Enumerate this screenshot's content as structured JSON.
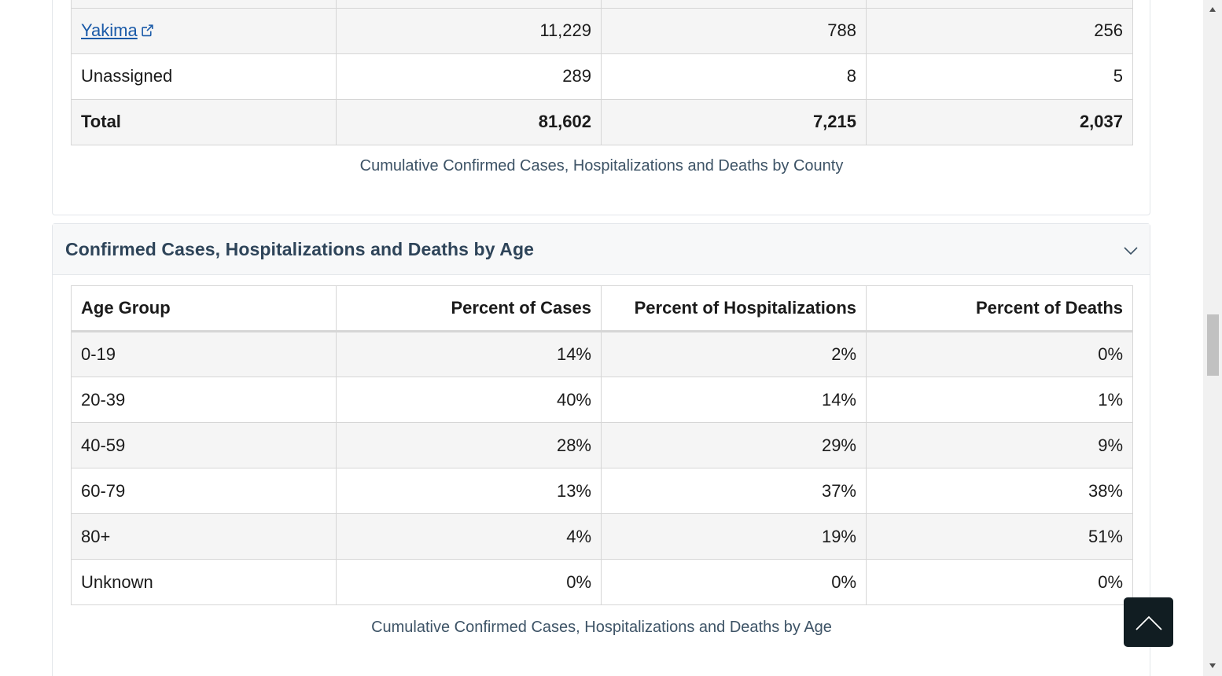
{
  "county_table": {
    "rows": [
      {
        "county": "Yakima",
        "link": true,
        "cases": "11,229",
        "hospitalizations": "788",
        "deaths": "256"
      },
      {
        "county": "Unassigned",
        "link": false,
        "cases": "289",
        "hospitalizations": "8",
        "deaths": "5"
      }
    ],
    "total": {
      "label": "Total",
      "cases": "81,602",
      "hospitalizations": "7,215",
      "deaths": "2,037"
    },
    "caption": "Cumulative Confirmed Cases, Hospitalizations and Deaths by County"
  },
  "age_section": {
    "title": "Confirmed Cases, Hospitalizations and Deaths by Age",
    "headers": [
      "Age Group",
      "Percent of Cases",
      "Percent of Hospitalizations",
      "Percent of Deaths"
    ],
    "rows": [
      [
        "0-19",
        "14%",
        "2%",
        "0%"
      ],
      [
        "20-39",
        "40%",
        "14%",
        "1%"
      ],
      [
        "40-59",
        "28%",
        "29%",
        "9%"
      ],
      [
        "60-79",
        "13%",
        "37%",
        "38%"
      ],
      [
        "80+",
        "4%",
        "19%",
        "51%"
      ],
      [
        "Unknown",
        "0%",
        "0%",
        "0%"
      ]
    ],
    "caption": "Cumulative Confirmed Cases, Hospitalizations and Deaths by Age"
  },
  "icons": {
    "external_link": "external-link-icon",
    "collapse": "chevron-down-icon",
    "back_to_top": "chevron-up-icon"
  },
  "colors": {
    "link": "#1a5aa8",
    "section_title": "#2e4459",
    "back_to_top_bg": "#111d22"
  }
}
